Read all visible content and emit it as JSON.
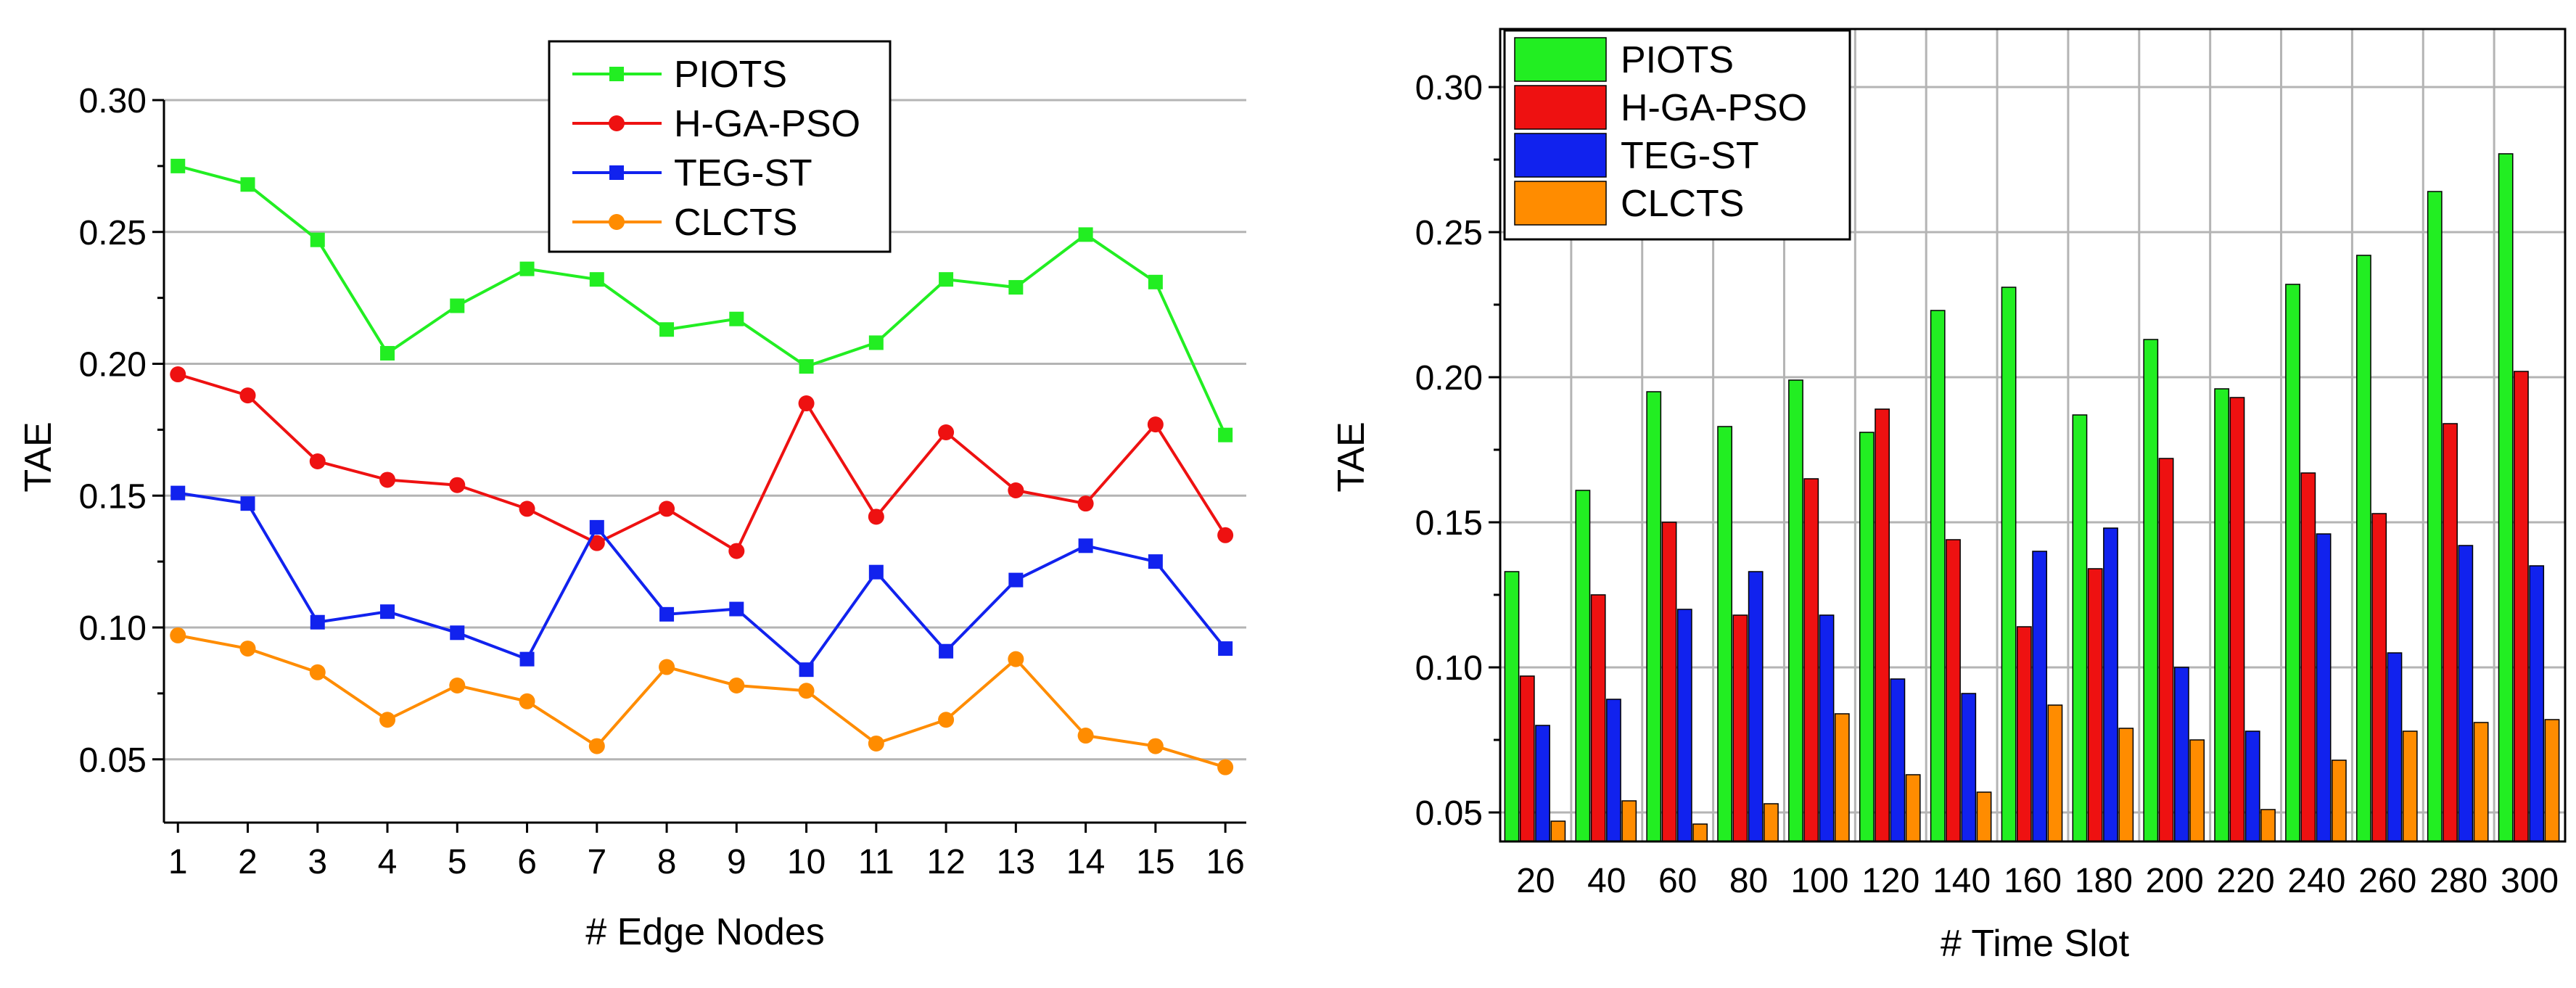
{
  "colors": {
    "PIOTS": "#22ee22",
    "H-GA-PSO": "#ee1111",
    "TEG-ST": "#1122ee",
    "CLCTS": "#ff8c00",
    "grid": "#b4b4b4",
    "axis": "#000000"
  },
  "chart_data": [
    {
      "type": "line",
      "xlabel": "# Edge Nodes",
      "ylabel": "TAE",
      "x": [
        1,
        2,
        3,
        4,
        5,
        6,
        7,
        8,
        9,
        10,
        11,
        12,
        13,
        14,
        15,
        16
      ],
      "xlim": [
        0.8,
        16.3
      ],
      "ylim": [
        0.026,
        0.3
      ],
      "yticks": [
        "0.05",
        "0.10",
        "0.15",
        "0.20",
        "0.25",
        "0.30"
      ],
      "xticks": [
        "1",
        "2",
        "3",
        "4",
        "5",
        "6",
        "7",
        "8",
        "9",
        "10",
        "11",
        "12",
        "13",
        "14",
        "15",
        "16"
      ],
      "grid": true,
      "legend_position": "top-center",
      "series": [
        {
          "name": "PIOTS",
          "marker": "square",
          "values": [
            0.275,
            0.268,
            0.247,
            0.204,
            0.222,
            0.236,
            0.232,
            0.213,
            0.217,
            0.199,
            0.208,
            0.232,
            0.229,
            0.249,
            0.231,
            0.173
          ]
        },
        {
          "name": "H-GA-PSO",
          "marker": "circle",
          "values": [
            0.196,
            0.188,
            0.163,
            0.156,
            0.154,
            0.145,
            0.132,
            0.145,
            0.129,
            0.185,
            0.142,
            0.174,
            0.152,
            0.147,
            0.177,
            0.135
          ]
        },
        {
          "name": "TEG-ST",
          "marker": "square",
          "values": [
            0.151,
            0.147,
            0.102,
            0.106,
            0.098,
            0.088,
            0.138,
            0.105,
            0.107,
            0.084,
            0.121,
            0.091,
            0.118,
            0.131,
            0.125,
            0.092
          ]
        },
        {
          "name": "CLCTS",
          "marker": "circle",
          "values": [
            0.097,
            0.092,
            0.083,
            0.065,
            0.078,
            0.072,
            0.055,
            0.085,
            0.078,
            0.076,
            0.056,
            0.065,
            0.088,
            0.059,
            0.055,
            0.047
          ]
        }
      ]
    },
    {
      "type": "bar",
      "xlabel": "# Time Slot",
      "ylabel": "TAE",
      "categories": [
        "20",
        "40",
        "60",
        "80",
        "100",
        "120",
        "140",
        "160",
        "180",
        "200",
        "220",
        "240",
        "260",
        "280",
        "300"
      ],
      "ylim": [
        0.04,
        0.32
      ],
      "yticks": [
        "0.05",
        "0.10",
        "0.15",
        "0.20",
        "0.25",
        "0.30"
      ],
      "grid": true,
      "legend_position": "top-left",
      "series": [
        {
          "name": "PIOTS",
          "values": [
            0.133,
            0.161,
            0.195,
            0.183,
            0.199,
            0.181,
            0.223,
            0.231,
            0.187,
            0.213,
            0.196,
            0.232,
            0.242,
            0.264,
            0.277
          ]
        },
        {
          "name": "H-GA-PSO",
          "values": [
            0.097,
            0.125,
            0.15,
            0.118,
            0.165,
            0.189,
            0.144,
            0.114,
            0.134,
            0.172,
            0.193,
            0.167,
            0.153,
            0.184,
            0.202
          ]
        },
        {
          "name": "TEG-ST",
          "values": [
            0.08,
            0.089,
            0.12,
            0.133,
            0.118,
            0.096,
            0.091,
            0.14,
            0.148,
            0.1,
            0.078,
            0.146,
            0.105,
            0.142,
            0.135
          ]
        },
        {
          "name": "CLCTS",
          "values": [
            0.047,
            0.054,
            0.046,
            0.053,
            0.084,
            0.063,
            0.057,
            0.087,
            0.079,
            0.075,
            0.051,
            0.068,
            0.078,
            0.081,
            0.082
          ]
        }
      ]
    }
  ]
}
